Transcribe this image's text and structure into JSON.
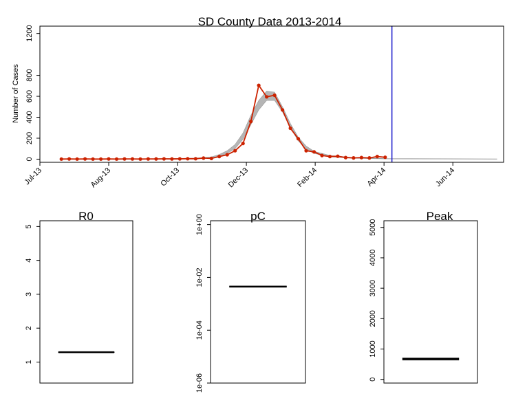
{
  "chart_data": [
    {
      "type": "line",
      "title": "SD County Data 2013-2014",
      "xlabel": "",
      "ylabel": "Number of Cases",
      "x_tick_labels": [
        "Jul-13",
        "Aug-13",
        "Oct-13",
        "Dec-13",
        "Feb-14",
        "Apr-14",
        "Jun-14"
      ],
      "x_tick_dates": [
        "2013-07-01",
        "2013-08-31",
        "2013-10-31",
        "2013-12-31",
        "2014-03-02",
        "2014-05-02",
        "2014-07-02"
      ],
      "xlim": [
        "2013-07-01",
        "2014-08-16"
      ],
      "y_ticks": [
        0,
        200,
        400,
        600,
        800,
        1200
      ],
      "ylim": [
        -30,
        1270
      ],
      "current_date_line": "2014-05-09",
      "series": [
        {
          "color": "#cc2200",
          "x": [
            "2013-07-20",
            "2013-07-27",
            "2013-08-03",
            "2013-08-10",
            "2013-08-17",
            "2013-08-24",
            "2013-08-31",
            "2013-09-07",
            "2013-09-14",
            "2013-09-21",
            "2013-09-28",
            "2013-10-05",
            "2013-10-12",
            "2013-10-19",
            "2013-10-26",
            "2013-11-02",
            "2013-11-09",
            "2013-11-16",
            "2013-11-23",
            "2013-11-30",
            "2013-12-07",
            "2013-12-14",
            "2013-12-21",
            "2013-12-28",
            "2014-01-04",
            "2014-01-11",
            "2014-01-18",
            "2014-01-25",
            "2014-02-01",
            "2014-02-08",
            "2014-02-15",
            "2014-02-22",
            "2014-03-01",
            "2014-03-08",
            "2014-03-15",
            "2014-03-22",
            "2014-03-29",
            "2014-04-05",
            "2014-04-12",
            "2014-04-19",
            "2014-04-26",
            "2014-05-03"
          ],
          "values": [
            1,
            2,
            1,
            2,
            1,
            1,
            2,
            1,
            2,
            2,
            1,
            2,
            2,
            3,
            2,
            3,
            4,
            4,
            10,
            7,
            25,
            42,
            80,
            150,
            360,
            705,
            595,
            610,
            470,
            295,
            195,
            80,
            70,
            35,
            25,
            28,
            15,
            12,
            15,
            12,
            25,
            18
          ]
        }
      ],
      "fit_band": {
        "color": "#b5b5b5",
        "x": [
          "2013-07-20",
          "2013-08-31",
          "2013-10-12",
          "2013-11-16",
          "2013-11-30",
          "2013-12-07",
          "2013-12-14",
          "2013-12-21",
          "2013-12-28",
          "2014-01-04",
          "2014-01-11",
          "2014-01-18",
          "2014-01-25",
          "2014-02-01",
          "2014-02-08",
          "2014-02-15",
          "2014-02-22",
          "2014-03-01",
          "2014-03-15",
          "2014-04-05",
          "2014-05-03",
          "2014-08-10"
        ],
        "lower": [
          0,
          0,
          1,
          5,
          12,
          28,
          55,
          100,
          190,
          330,
          470,
          560,
          560,
          450,
          300,
          175,
          95,
          55,
          22,
          8,
          2,
          0
        ],
        "upper": [
          1,
          2,
          4,
          10,
          22,
          45,
          80,
          140,
          250,
          420,
          560,
          650,
          640,
          500,
          340,
          210,
          125,
          75,
          35,
          15,
          6,
          2
        ]
      }
    },
    {
      "type": "box",
      "title": "R0",
      "y_ticks": [
        1,
        2,
        3,
        4,
        5
      ],
      "ylim": [
        0.38,
        5.17
      ],
      "log_scale": false,
      "box": {
        "median": 1.29,
        "q1": 1.28,
        "q3": 1.3
      }
    },
    {
      "type": "box",
      "title": "pC",
      "y_ticks": [
        "1e-06",
        "1e-04",
        "1e-02",
        "1e+00"
      ],
      "ylim": [
        1e-06,
        1.4
      ],
      "log_scale": true,
      "box": {
        "median": 0.0045,
        "q1": 0.0043,
        "q3": 0.0047
      }
    },
    {
      "type": "box",
      "title": "Peak",
      "y_ticks": [
        0,
        1000,
        2000,
        3000,
        4000,
        5000
      ],
      "ylim": [
        -120,
        5220
      ],
      "log_scale": false,
      "box": {
        "median": 670,
        "q1": 640,
        "q3": 705
      }
    }
  ]
}
